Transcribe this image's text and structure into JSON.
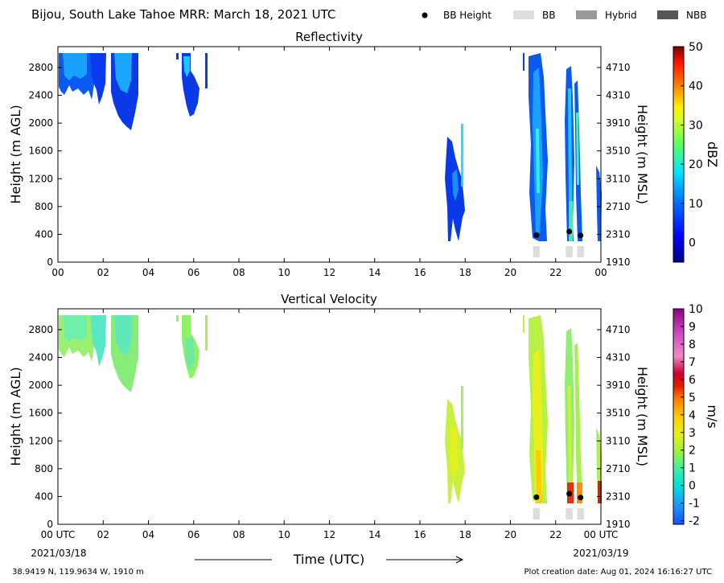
{
  "figure": {
    "title": "Bijou, South Lake Tahoe MRR:  March 18, 2021 UTC",
    "location": "38.9419 N, 119.9634 W, 1910 m",
    "creation_date": "Plot creation date: Aug 01, 2024 16:16:27 UTC",
    "xlabel": "Time (UTC)",
    "date_start": "2021/03/18",
    "date_end": "2021/03/19",
    "legend": {
      "bb_height": "BB Height",
      "bb": "BB",
      "hybrid": "Hybrid",
      "nbb": "NBB",
      "colors": {
        "bb": "#dddddd",
        "hybrid": "#999999",
        "nbb": "#555555",
        "bb_height": "#000000"
      }
    }
  },
  "chart_data": [
    {
      "type": "heatmap",
      "title": "Reflectivity",
      "ylabel": "Height (m AGL)",
      "ylabel_right": "Height (m MSL)",
      "colorbar_label": "dBZ",
      "xlim": [
        0,
        24
      ],
      "ylim": [
        0,
        3100
      ],
      "x_ticks": [
        "00",
        "02",
        "04",
        "06",
        "08",
        "10",
        "12",
        "14",
        "16",
        "18",
        "20",
        "22",
        "00"
      ],
      "y_ticks": [
        0,
        400,
        800,
        1200,
        1600,
        2000,
        2400,
        2800
      ],
      "y_ticks_right": [
        "1910",
        "2310",
        "2710",
        "3110",
        "3510",
        "3910",
        "4310",
        "4710"
      ],
      "colorbar_range": [
        -5,
        50
      ],
      "colorbar_ticks": [
        "0",
        "10",
        "20",
        "30",
        "40",
        "50"
      ],
      "bb_height_points": [
        {
          "x": 21.15,
          "y": 390
        },
        {
          "x": 22.6,
          "y": 440
        },
        {
          "x": 23.1,
          "y": 385
        }
      ],
      "bb_segments": [
        {
          "x0": 21.0,
          "x1": 21.3
        },
        {
          "x0": 22.45,
          "x1": 22.75
        },
        {
          "x0": 22.95,
          "x1": 23.25
        }
      ]
    },
    {
      "type": "heatmap",
      "title": "Vertical Velocity",
      "ylabel": "Height (m AGL)",
      "ylabel_right": "Height (m MSL)",
      "colorbar_label": "m/s",
      "xlim": [
        0,
        24
      ],
      "ylim": [
        0,
        3100
      ],
      "x_ticks": [
        "00 UTC",
        "02",
        "04",
        "06",
        "08",
        "10",
        "12",
        "14",
        "16",
        "18",
        "20",
        "22",
        "00 UTC"
      ],
      "y_ticks": [
        0,
        400,
        800,
        1200,
        1600,
        2000,
        2400,
        2800
      ],
      "y_ticks_right": [
        "1910",
        "2310",
        "2710",
        "3110",
        "3510",
        "3910",
        "4310",
        "4710"
      ],
      "colorbar_range": [
        -2.2,
        10
      ],
      "colorbar_ticks": [
        "-2",
        "-1",
        "0",
        "1",
        "2",
        "3",
        "4",
        "5",
        "6",
        "7",
        "8",
        "9",
        "10"
      ],
      "bb_height_points": [
        {
          "x": 21.15,
          "y": 390
        },
        {
          "x": 22.6,
          "y": 440
        },
        {
          "x": 23.1,
          "y": 385
        }
      ],
      "bb_segments": [
        {
          "x0": 21.0,
          "x1": 21.3
        },
        {
          "x0": 22.45,
          "x1": 22.75
        },
        {
          "x0": 22.95,
          "x1": 23.25
        }
      ]
    }
  ]
}
